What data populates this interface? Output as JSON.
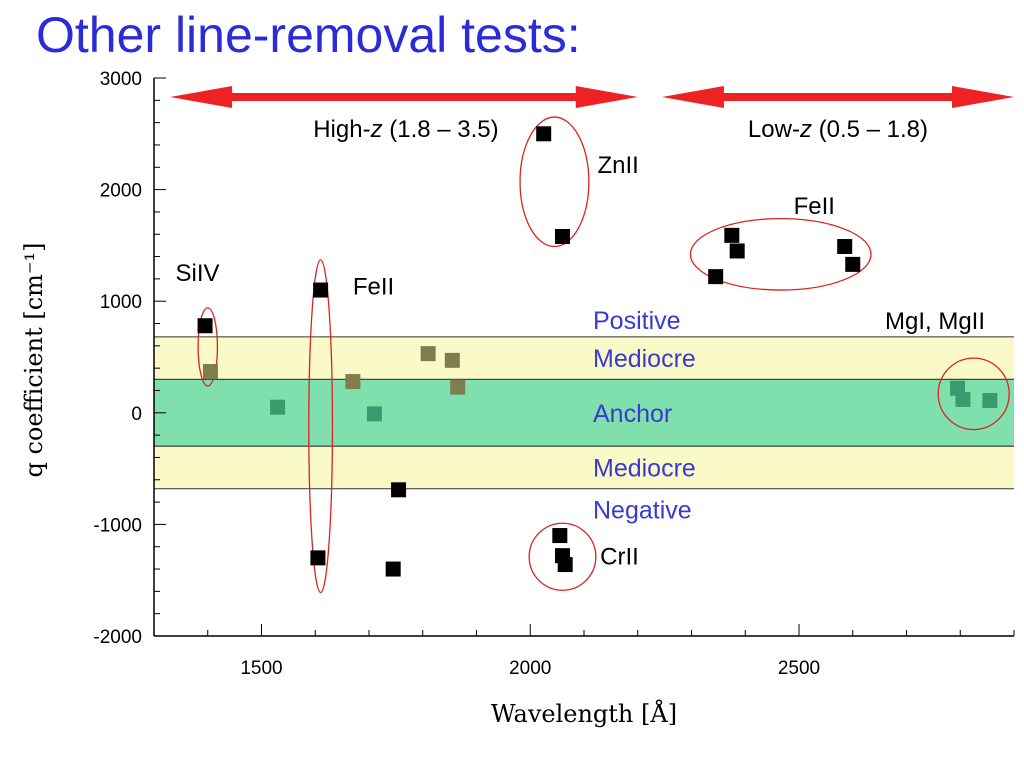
{
  "slide": {
    "title": "Other line-removal tests:"
  },
  "chart_data": {
    "type": "scatter",
    "title": "",
    "xlabel": "Wavelength [Å]",
    "ylabel": "q coefficient [cm⁻¹]",
    "xlim": [
      1300,
      2900
    ],
    "ylim": [
      -2000,
      3000
    ],
    "x_ticks": [
      1500,
      2000,
      2500
    ],
    "y_ticks": [
      -2000,
      -1000,
      0,
      1000,
      2000,
      3000
    ],
    "grid": false,
    "bands": [
      {
        "label": "Positive",
        "y_from": 680,
        "y_to": 680,
        "color": ""
      },
      {
        "label": "Mediocre",
        "y_from": 300,
        "y_to": 680,
        "color": "#fafac8"
      },
      {
        "label": "Anchor",
        "y_from": -300,
        "y_to": 300,
        "color": "#7fe0ad"
      },
      {
        "label": "Mediocre",
        "y_from": -680,
        "y_to": -300,
        "color": "#fafac8"
      },
      {
        "label": "Negative",
        "y_from": -680,
        "y_to": -680,
        "color": ""
      }
    ],
    "ranges": [
      {
        "label_prefix": "High-",
        "label_var": "z",
        "label_suffix": " (1.8 – 3.5)",
        "x_from": 1330,
        "x_to": 2200,
        "y": 2830,
        "color": "#ee2222"
      },
      {
        "label_prefix": "Low-",
        "label_var": "z",
        "label_suffix": " (0.5 – 1.8)",
        "x_from": 2245,
        "x_to": 2900,
        "y": 2830,
        "color": "#ee2222"
      }
    ],
    "groups": [
      {
        "label": "SiIV",
        "cx": 1400,
        "cy": 590,
        "rx": 18,
        "ry": 350,
        "label_x": 1340,
        "label_y": 1180
      },
      {
        "label": "FeII",
        "cx": 1610,
        "cy": -120,
        "rx": 22,
        "ry": 1490,
        "label_x": 1670,
        "label_y": 1060
      },
      {
        "label": "ZnII",
        "cx": 2045,
        "cy": 2070,
        "rx": 64,
        "ry": 580,
        "label_x": 2125,
        "label_y": 2150
      },
      {
        "label": "FeII",
        "cx": 2466,
        "cy": 1420,
        "rx": 168,
        "ry": 320,
        "label_x": 2490,
        "label_y": 1780
      },
      {
        "label": "CrII",
        "cx": 2060,
        "cy": -1290,
        "rx": 62,
        "ry": 300,
        "label_x": 2130,
        "label_y": -1360
      },
      {
        "label": "MgI, MgII",
        "cx": 2825,
        "cy": 170,
        "rx": 66,
        "ry": 320,
        "label_x": 2660,
        "label_y": 750
      }
    ],
    "series": [
      {
        "marker": "square",
        "color": "#000000",
        "points": [
          {
            "x": 1395,
            "y": 780
          },
          {
            "x": 1610,
            "y": 1100
          },
          {
            "x": 1605,
            "y": -1300
          },
          {
            "x": 1745,
            "y": -1400
          },
          {
            "x": 1755,
            "y": -690
          },
          {
            "x": 2025,
            "y": 2500
          },
          {
            "x": 2060,
            "y": 1580
          },
          {
            "x": 2055,
            "y": -1100
          },
          {
            "x": 2060,
            "y": -1280
          },
          {
            "x": 2065,
            "y": -1360
          },
          {
            "x": 2345,
            "y": 1220
          },
          {
            "x": 2375,
            "y": 1590
          },
          {
            "x": 2385,
            "y": 1450
          },
          {
            "x": 2585,
            "y": 1490
          },
          {
            "x": 2600,
            "y": 1330
          }
        ]
      },
      {
        "marker": "square",
        "color": "#3a9a6e",
        "points": [
          {
            "x": 1530,
            "y": 50
          },
          {
            "x": 1710,
            "y": -10
          },
          {
            "x": 2795,
            "y": 220
          },
          {
            "x": 2805,
            "y": 120
          },
          {
            "x": 2855,
            "y": 110
          }
        ]
      },
      {
        "marker": "square",
        "color": "#7d7d50",
        "points": [
          {
            "x": 1405,
            "y": 370
          },
          {
            "x": 1670,
            "y": 280
          },
          {
            "x": 1810,
            "y": 530
          },
          {
            "x": 1855,
            "y": 470
          },
          {
            "x": 1865,
            "y": 230
          }
        ]
      }
    ]
  }
}
